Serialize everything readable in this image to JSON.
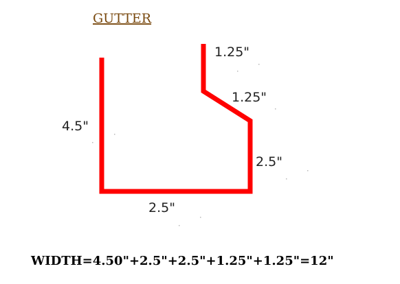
{
  "title": "GUTTER",
  "colors": {
    "title": "#7a4a10",
    "profile": "#ff0000",
    "label": "#222222",
    "formula": "#000000",
    "background": "#ffffff"
  },
  "dimensions": {
    "top_lip": "1.25\"",
    "slope": "1.25\"",
    "front_height": "4.5\"",
    "back_height": "2.5\"",
    "bottom": "2.5\""
  },
  "formula": "WIDTH=4.50\"+2.5\"+2.5\"+1.25\"+1.25\"=12\""
}
